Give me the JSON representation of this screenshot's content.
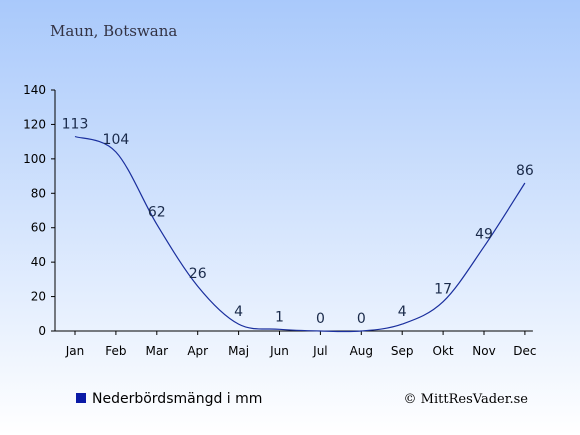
{
  "page": {
    "location": "Maun, Botswana",
    "credit": "© MittResVader.se",
    "background_top": "#a9c9fb",
    "background_bottom": "#ffffff",
    "line_color": "#1a2f9e",
    "legend_swatch_color": "#0a1aa6"
  },
  "chart_data": {
    "type": "line",
    "categories": [
      "Jan",
      "Feb",
      "Mar",
      "Apr",
      "Maj",
      "Jun",
      "Jul",
      "Aug",
      "Sep",
      "Okt",
      "Nov",
      "Dec"
    ],
    "series": [
      {
        "name": "Nederbördsmängd i mm",
        "values": [
          113,
          104,
          62,
          26,
          4,
          1,
          0,
          0,
          4,
          17,
          49,
          86
        ]
      }
    ],
    "data_labels": [
      "113",
      "104",
      "62",
      "26",
      "4",
      "1",
      "0",
      "0",
      "4",
      "17",
      "49",
      "86"
    ],
    "ylim": [
      0,
      140
    ],
    "yticks": [
      0,
      20,
      40,
      60,
      80,
      100,
      120,
      140
    ],
    "grid": false,
    "legend": "bottom-left"
  }
}
